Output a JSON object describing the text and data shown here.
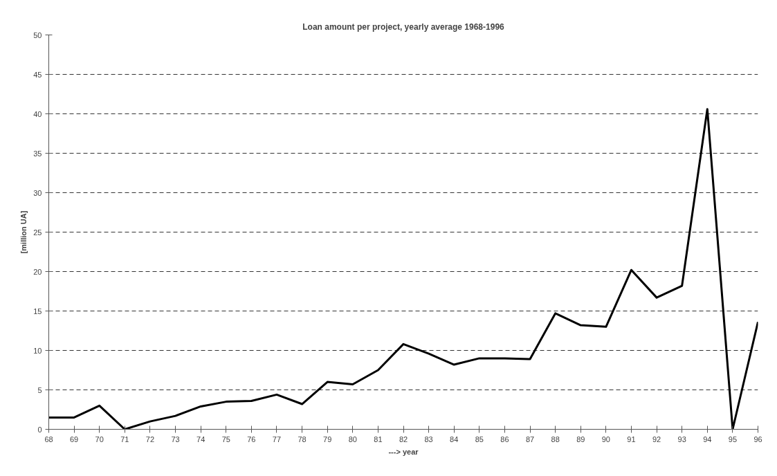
{
  "chart_data": {
    "type": "line",
    "title": "Loan amount per project, yearly average 1968-1996",
    "xlabel": "---> year",
    "ylabel": "[million UA]",
    "categories": [
      "68",
      "69",
      "70",
      "71",
      "72",
      "73",
      "74",
      "75",
      "76",
      "77",
      "78",
      "79",
      "80",
      "81",
      "82",
      "83",
      "84",
      "85",
      "86",
      "87",
      "88",
      "89",
      "90",
      "91",
      "92",
      "93",
      "94",
      "95",
      "96"
    ],
    "series": [
      {
        "color": "#000000",
        "values": [
          1.5,
          1.5,
          3.0,
          0,
          1.0,
          1.7,
          2.9,
          3.5,
          3.6,
          4.4,
          3.2,
          6.0,
          5.7,
          7.5,
          10.8,
          9.6,
          8.2,
          9.0,
          9.0,
          8.9,
          14.7,
          13.2,
          13.0,
          20.2,
          16.7,
          18.2,
          40.6,
          0,
          13.6
        ]
      }
    ],
    "ylim": [
      0,
      50
    ],
    "yticks": [
      0,
      5,
      10,
      15,
      20,
      25,
      30,
      35,
      40,
      45,
      50
    ],
    "grid": "y",
    "line_style": "solid"
  }
}
